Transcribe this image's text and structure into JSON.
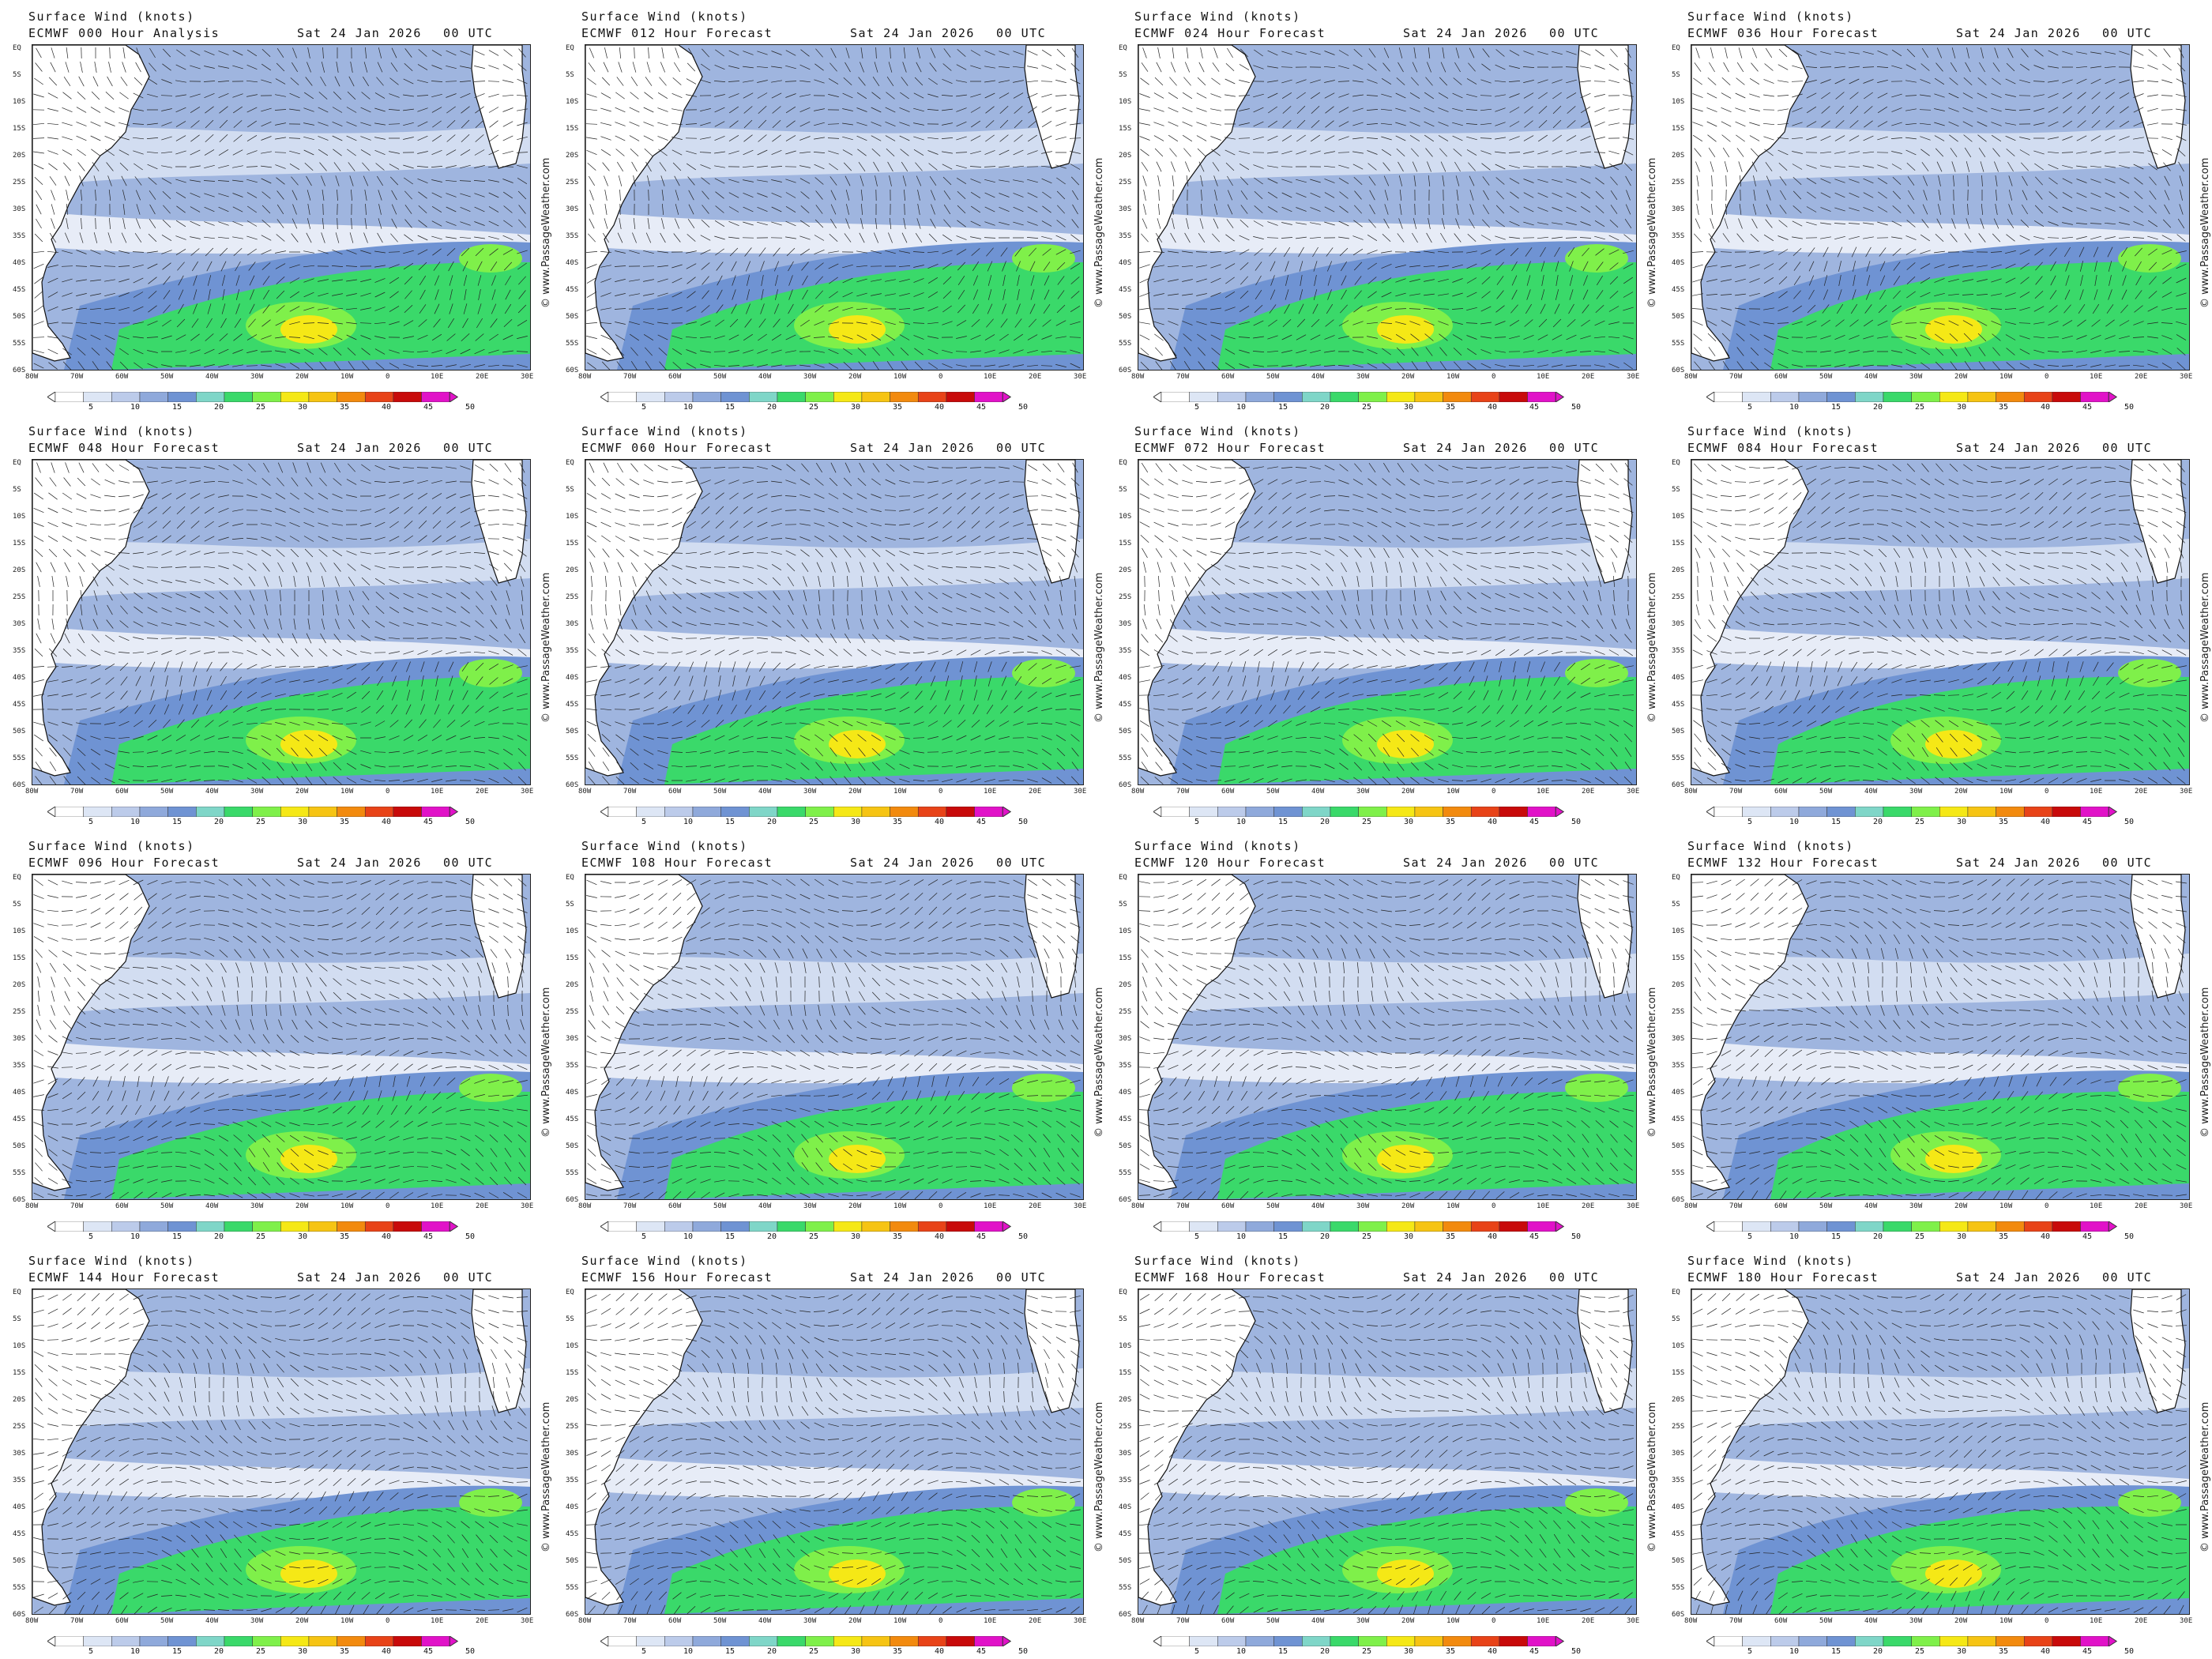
{
  "header": {
    "title": "Surface Wind (knots)",
    "date": "Sat 24 Jan 2026",
    "utc": "00 UTC"
  },
  "credit": "© www.PassageWeather.com",
  "panels": [
    {
      "subtitle": "ECMWF 000 Hour Analysis"
    },
    {
      "subtitle": "ECMWF 012 Hour Forecast"
    },
    {
      "subtitle": "ECMWF 024 Hour Forecast"
    },
    {
      "subtitle": "ECMWF 036 Hour Forecast"
    },
    {
      "subtitle": "ECMWF 048 Hour Forecast"
    },
    {
      "subtitle": "ECMWF 060 Hour Forecast"
    },
    {
      "subtitle": "ECMWF 072 Hour Forecast"
    },
    {
      "subtitle": "ECMWF 084 Hour Forecast"
    },
    {
      "subtitle": "ECMWF 096 Hour Forecast"
    },
    {
      "subtitle": "ECMWF 108 Hour Forecast"
    },
    {
      "subtitle": "ECMWF 120 Hour Forecast"
    },
    {
      "subtitle": "ECMWF 132 Hour Forecast"
    },
    {
      "subtitle": "ECMWF 144 Hour Forecast"
    },
    {
      "subtitle": "ECMWF 156 Hour Forecast"
    },
    {
      "subtitle": "ECMWF 168 Hour Forecast"
    },
    {
      "subtitle": "ECMWF 180 Hour Forecast"
    }
  ],
  "lat_labels": [
    "EQ",
    "5S",
    "10S",
    "15S",
    "20S",
    "25S",
    "30S",
    "35S",
    "40S",
    "45S",
    "50S",
    "55S",
    "60S"
  ],
  "lon_labels": [
    "80W",
    "70W",
    "60W",
    "50W",
    "40W",
    "30W",
    "20W",
    "10W",
    "0",
    "10E",
    "20E",
    "30E"
  ],
  "colorbar": {
    "labels": [
      "5",
      "10",
      "15",
      "20",
      "25",
      "30",
      "35",
      "40",
      "45",
      "50"
    ],
    "colors": [
      "#ffffff",
      "#dde6f5",
      "#bccbea",
      "#8fa9db",
      "#6f93d3",
      "#7fd6c8",
      "#3ad96a",
      "#7ff04a",
      "#f5e816",
      "#f6c413",
      "#f28a0e",
      "#e84318",
      "#c80a0a",
      "#e112c8"
    ]
  }
}
